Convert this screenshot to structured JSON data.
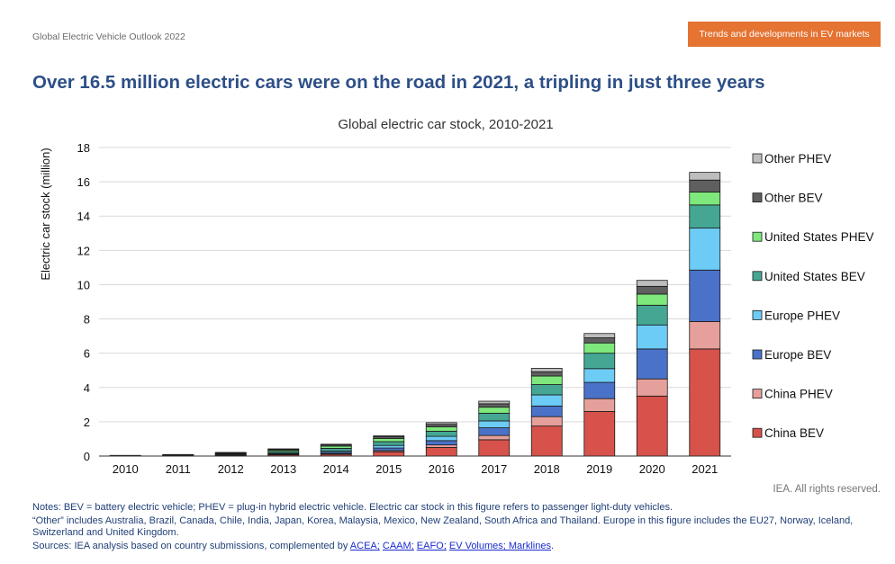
{
  "header": {
    "report_name": "Global Electric Vehicle Outlook 2022",
    "section_tag": "Trends and developments in EV markets"
  },
  "headline": "Over 16.5 million electric cars were on the road in 2021, a tripling in just three years",
  "chart_data": {
    "type": "bar",
    "stacked": true,
    "title": "Global electric car stock, 2010-2021",
    "xlabel": "",
    "ylabel": "Electric car stock (million)",
    "ylim": [
      0,
      18
    ],
    "yticks": [
      0,
      2,
      4,
      6,
      8,
      10,
      12,
      14,
      16,
      18
    ],
    "grid": true,
    "legend_position": "right",
    "categories": [
      "2010",
      "2011",
      "2012",
      "2013",
      "2014",
      "2015",
      "2016",
      "2017",
      "2018",
      "2019",
      "2020",
      "2021"
    ],
    "series": [
      {
        "name": "China BEV",
        "color": "#d6524a",
        "values": [
          0.01,
          0.02,
          0.03,
          0.07,
          0.1,
          0.25,
          0.5,
          0.95,
          1.75,
          2.6,
          3.5,
          6.25
        ]
      },
      {
        "name": "China PHEV",
        "color": "#e6a09b",
        "values": [
          0.0,
          0.0,
          0.01,
          0.02,
          0.04,
          0.07,
          0.15,
          0.25,
          0.55,
          0.75,
          1.0,
          1.6
        ]
      },
      {
        "name": "Europe BEV",
        "color": "#4a72c8",
        "values": [
          0.01,
          0.01,
          0.02,
          0.04,
          0.08,
          0.15,
          0.25,
          0.45,
          0.62,
          0.95,
          1.75,
          3.0
        ]
      },
      {
        "name": "Europe PHEV",
        "color": "#6dccf5",
        "values": [
          0.0,
          0.01,
          0.02,
          0.04,
          0.08,
          0.15,
          0.25,
          0.4,
          0.65,
          0.8,
          1.4,
          2.45
        ]
      },
      {
        "name": "United States BEV",
        "color": "#45a793",
        "values": [
          0.01,
          0.02,
          0.05,
          0.1,
          0.15,
          0.22,
          0.3,
          0.45,
          0.6,
          0.9,
          1.15,
          1.35
        ]
      },
      {
        "name": "United States PHEV",
        "color": "#7ee87c",
        "values": [
          0.0,
          0.01,
          0.04,
          0.08,
          0.13,
          0.19,
          0.25,
          0.35,
          0.5,
          0.6,
          0.65,
          0.75
        ]
      },
      {
        "name": "Other BEV",
        "color": "#5f5f5f",
        "values": [
          0.01,
          0.02,
          0.03,
          0.05,
          0.08,
          0.1,
          0.15,
          0.2,
          0.25,
          0.3,
          0.45,
          0.7
        ]
      },
      {
        "name": "Other PHEV",
        "color": "#bdbdbd",
        "values": [
          0.0,
          0.0,
          0.01,
          0.02,
          0.03,
          0.05,
          0.1,
          0.15,
          0.2,
          0.25,
          0.35,
          0.45
        ]
      }
    ]
  },
  "copyright": "IEA. All rights reserved.",
  "notes": {
    "line1": "Notes: BEV = battery electric vehicle; PHEV = plug-in hybrid electric vehicle. Electric car stock in this figure refers to passenger light-duty vehicles.",
    "line2": "“Other” includes Australia, Brazil, Canada, Chile, India, Japan, Korea, Malaysia, Mexico, New Zealand, South Africa and Thailand. Europe in this figure includes the EU27, Norway, Iceland, Switzerland and United Kingdom.",
    "sources_prefix": "Sources: IEA analysis based on country submissions, complemented by ",
    "link_acea": "ACEA;",
    "link_caam": "CAAM;",
    "link_eafo": "EAFO;",
    "link_ev": "EV Volumes; Marklines",
    "sources_suffix": "."
  }
}
